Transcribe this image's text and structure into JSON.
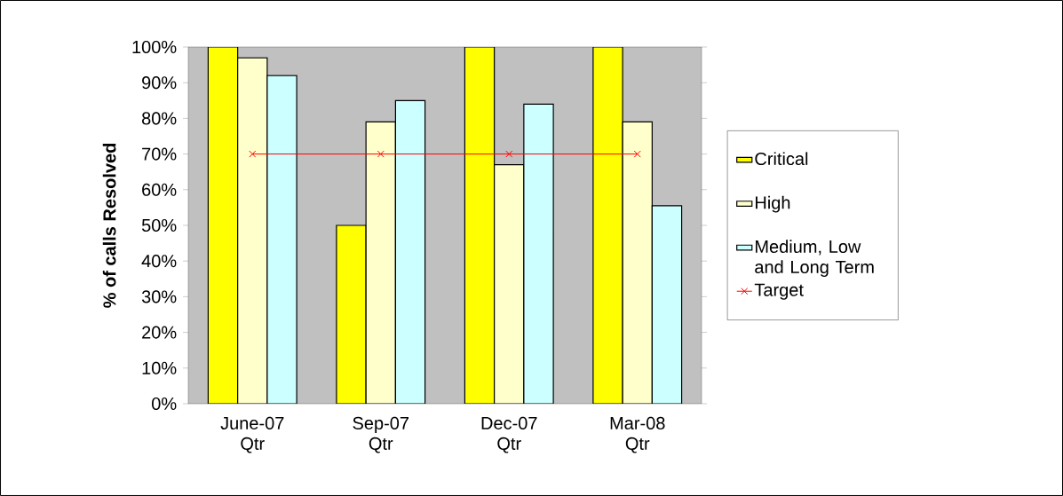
{
  "chart_data": {
    "type": "bar",
    "ylabel": "% of calls Resolved",
    "categories": [
      "June-07 Qtr",
      "Sep-07 Qtr",
      "Dec-07 Qtr",
      "Mar-08 Qtr"
    ],
    "series": [
      {
        "name": "Critical",
        "color": "#ffff00",
        "values": [
          100,
          50,
          100,
          100
        ]
      },
      {
        "name": "High",
        "color": "#ffffcc",
        "values": [
          97,
          79,
          67,
          79
        ]
      },
      {
        "name": "Medium, Low and Long Term",
        "color": "#ccffff",
        "values": [
          92,
          85,
          84,
          55.5
        ]
      },
      {
        "name": "Target",
        "type": "line",
        "color": "#ff0000",
        "marker": "cross",
        "values": [
          70,
          70,
          70,
          70
        ]
      }
    ],
    "ylim": [
      0,
      100
    ],
    "yticks": [
      {
        "value": 0,
        "label": "0%"
      },
      {
        "value": 10,
        "label": "10%"
      },
      {
        "value": 20,
        "label": "20%"
      },
      {
        "value": 30,
        "label": "30%"
      },
      {
        "value": 40,
        "label": "40%"
      },
      {
        "value": 50,
        "label": "50%"
      },
      {
        "value": 60,
        "label": "60%"
      },
      {
        "value": 70,
        "label": "70%"
      },
      {
        "value": 80,
        "label": "80%"
      },
      {
        "value": 90,
        "label": "90%"
      },
      {
        "value": 100,
        "label": "100%"
      }
    ],
    "grid": false,
    "legend": "right"
  }
}
